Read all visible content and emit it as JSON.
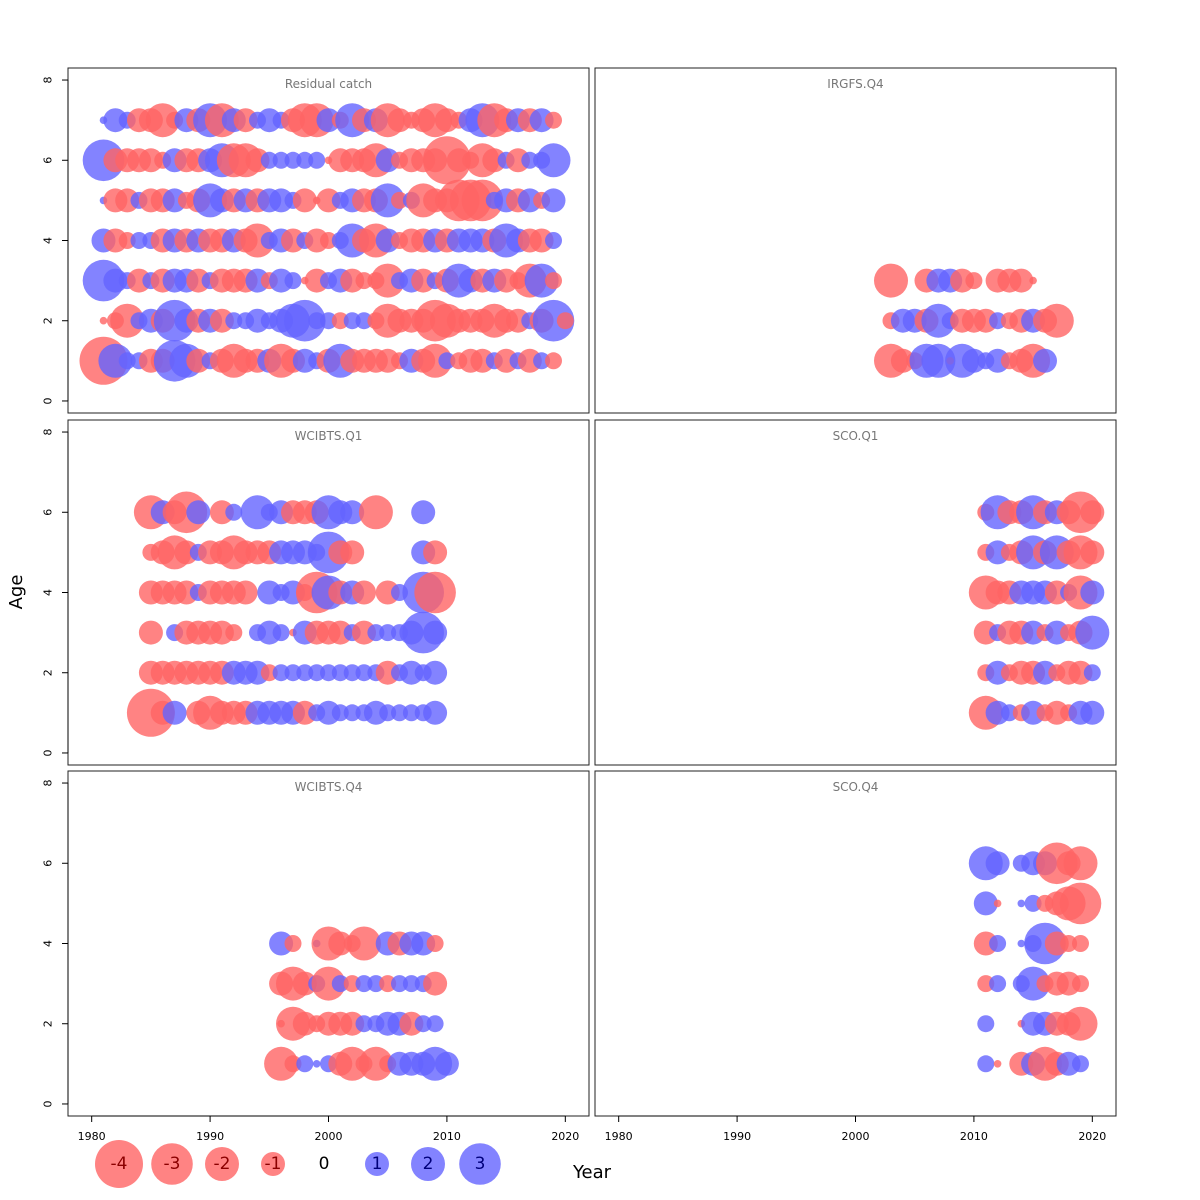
{
  "chart_data": {
    "type": "scatter",
    "subtype": "bubble-residuals",
    "xlabel": "Year",
    "ylabel": "Age",
    "xlim": [
      1978,
      2022
    ],
    "ylim": [
      -0.3,
      8.3
    ],
    "x_ticks": [
      1980,
      1990,
      2000,
      2010,
      2020
    ],
    "y_ticks": [
      0,
      2,
      4,
      6,
      8
    ],
    "colors": {
      "positive": "#6464ff",
      "negative": "#ff6464"
    },
    "legend": {
      "placement": "bottom-left",
      "entries": [
        {
          "label": "-4",
          "value": -4
        },
        {
          "label": "-3",
          "value": -3
        },
        {
          "label": "-2",
          "value": -2
        },
        {
          "label": "-1",
          "value": -1
        },
        {
          "label": "0",
          "value": 0
        },
        {
          "label": "1",
          "value": 1
        },
        {
          "label": "2",
          "value": 2
        },
        {
          "label": "3",
          "value": 3
        }
      ]
    },
    "panels": [
      {
        "title": "Residual catch",
        "x_start": 1981,
        "rows": [
          {
            "age": 1,
            "residuals": [
              -4,
              2,
              0.5,
              0.5,
              -1,
              -1,
              3,
              2,
              -1,
              0.5,
              -1,
              -2,
              -1,
              -1,
              1,
              -2,
              -1,
              1,
              0.5,
              -1,
              2,
              -1,
              -1,
              -1,
              -1,
              -0.5,
              1,
              -1,
              -2,
              0.5,
              -0.5,
              -1,
              -1,
              0.5,
              -1,
              0.5,
              -1,
              0.5,
              -0.5
            ]
          },
          {
            "age": 2,
            "residuals": [
              -0.1,
              -0.5,
              -2,
              0.5,
              1,
              -1,
              3,
              1,
              -1,
              1,
              -1,
              0.5,
              0.5,
              1,
              0.5,
              1,
              2,
              3,
              0.5,
              0.5,
              -0.5,
              0.5,
              0.5,
              -0.5,
              -2,
              -1,
              -1,
              -1,
              -3,
              -2,
              -1,
              -1,
              -1,
              -2,
              -1,
              -1,
              0.5,
              -1,
              3,
              -0.5
            ]
          },
          {
            "age": 3,
            "residuals": [
              3,
              1,
              0.5,
              -1,
              0.5,
              -1,
              1,
              1,
              -1,
              0.5,
              -1,
              -1,
              -1,
              1,
              -0.5,
              1,
              0.5,
              -0.1,
              -1,
              0.5,
              1,
              -1,
              -0.5,
              -0.5,
              -2,
              0.5,
              1,
              -1,
              0.5,
              -1,
              2,
              1,
              -1,
              1,
              -1,
              -0.5,
              -2,
              2,
              -0.5
            ]
          },
          {
            "age": 4,
            "residuals": [
              1,
              -1,
              -0.5,
              0.5,
              0.5,
              -1,
              1,
              -1,
              1,
              -1,
              -1,
              1,
              -1,
              -2,
              0.5,
              1,
              -1,
              0.5,
              -1,
              -0.5,
              0.5,
              2,
              -1,
              -2,
              1,
              -0.5,
              -1,
              -1,
              1,
              -1,
              1,
              1,
              1,
              -1,
              2,
              1,
              -1,
              -1,
              0.5
            ]
          },
          {
            "age": 5,
            "residuals": [
              0.1,
              -1,
              -1,
              0.5,
              -1,
              -1,
              1,
              -0.5,
              -1,
              2,
              1,
              -1,
              1,
              -1,
              1,
              1,
              0.5,
              -1,
              -0.1,
              -1,
              0.5,
              1,
              -1,
              -1,
              2,
              -0.5,
              0.5,
              -2,
              -1,
              -1,
              -3,
              -3,
              -3,
              0.5,
              1,
              -1,
              1,
              -0.5,
              1
            ]
          },
          {
            "age": 6,
            "residuals": [
              3,
              -1,
              -1,
              -1,
              -1,
              -0.5,
              1,
              -1,
              -1,
              1,
              2,
              -2,
              -2,
              -1,
              0.5,
              0.5,
              0.5,
              0.5,
              0.5,
              -0.1,
              -1,
              -1,
              -1,
              -2,
              1,
              -0.5,
              -1,
              -1,
              -1,
              -4,
              -1,
              -0.5,
              -2,
              -1,
              0.5,
              -1,
              0.5,
              0.5,
              2
            ]
          },
          {
            "age": 7,
            "residuals": [
              0.1,
              1,
              0.5,
              -1,
              -1,
              -2,
              -0.5,
              1,
              -1,
              2,
              -2,
              1,
              -1,
              0.5,
              1,
              0.5,
              -1,
              -2,
              -2,
              1,
              -0.5,
              2,
              -1,
              1,
              -2,
              -1,
              -0.5,
              -1,
              -2,
              -1,
              -0.5,
              1,
              2,
              -2,
              -1,
              1,
              -1,
              1,
              -0.5
            ]
          }
        ]
      },
      {
        "title": "IRGFS.Q4",
        "x_start": 2003,
        "rows": [
          {
            "age": 1,
            "residuals": [
              -2,
              -1,
              -0.5,
              2,
              2,
              -0.1,
              2,
              1,
              0.5,
              1,
              -0.5,
              -1,
              -2,
              1
            ]
          },
          {
            "age": 2,
            "residuals": [
              -0.5,
              1,
              1,
              -1,
              2,
              0.5,
              -1,
              -1,
              -1,
              0.5,
              -0.5,
              -1,
              1,
              -1,
              -2
            ]
          },
          {
            "age": 3,
            "residuals": [
              -2,
              0,
              0,
              -1,
              1,
              1,
              -1,
              -0.5,
              0,
              -1,
              -1,
              -1,
              -0.1
            ]
          }
        ]
      },
      {
        "title": "WCIBTS.Q1",
        "x_start": 1985,
        "rows": [
          {
            "age": 1,
            "residuals": [
              -4,
              -1,
              1,
              0,
              -1,
              -2,
              -1,
              -1,
              -1,
              1,
              1,
              1,
              1,
              -1,
              0.5,
              1,
              0.5,
              0.5,
              0.5,
              1,
              0.5,
              0.5,
              0.5,
              0.5,
              1
            ]
          },
          {
            "age": 2,
            "residuals": [
              -1,
              -1,
              -1,
              -1,
              -1,
              -1,
              -1,
              1,
              1,
              1,
              -0.5,
              0.5,
              0.5,
              0.5,
              0.5,
              0.5,
              0.5,
              0.5,
              0.5,
              0.5,
              -1,
              0.5,
              1,
              0.5,
              1
            ]
          },
          {
            "age": 3,
            "residuals": [
              -1,
              0,
              0.5,
              -1,
              -1,
              -1,
              -1,
              -0.5,
              0,
              0.5,
              1,
              0.5,
              -0.1,
              1,
              -1,
              -1,
              -1,
              0.5,
              -1,
              0.5,
              0.5,
              0.5,
              1,
              3,
              1
            ]
          },
          {
            "age": 4,
            "residuals": [
              -1,
              -1,
              -1,
              -1,
              0.5,
              -1,
              -1,
              -1,
              -1,
              0,
              1,
              0.5,
              1,
              -0.5,
              -3,
              2,
              -1,
              1,
              -1,
              0,
              -1,
              0.5,
              0,
              3,
              -3
            ]
          },
          {
            "age": 5,
            "residuals": [
              -0.5,
              -1,
              -2,
              -1,
              0.5,
              -1,
              -1,
              -2,
              -1,
              -1,
              -1,
              1,
              1,
              1,
              0.5,
              3,
              -1,
              -1,
              0,
              0,
              0,
              0,
              0,
              1,
              -1
            ]
          },
          {
            "age": 6,
            "residuals": [
              -2,
              1,
              -1,
              -3,
              1,
              0,
              -1,
              0.5,
              0,
              2,
              0.5,
              1,
              -1,
              -1,
              -1,
              2,
              1,
              1,
              0,
              -2,
              0,
              0,
              0,
              1
            ]
          }
        ]
      },
      {
        "title": "SCO.Q1",
        "x_start": 2011,
        "rows": [
          {
            "age": 1,
            "residuals": [
              -2,
              1,
              0.5,
              -0.5,
              1,
              -0.5,
              -1,
              -0.5,
              1,
              1
            ]
          },
          {
            "age": 2,
            "residuals": [
              -0.5,
              1,
              -0.5,
              -1,
              -1,
              1,
              -0.5,
              -1,
              -1,
              0.5
            ]
          },
          {
            "age": 3,
            "residuals": [
              -1,
              0.5,
              -1,
              -1,
              1,
              -0.5,
              1,
              -0.5,
              -1,
              2
            ]
          },
          {
            "age": 4,
            "residuals": [
              -2,
              -1,
              -1,
              1,
              1,
              1,
              -1,
              0.5,
              -2,
              1
            ]
          },
          {
            "age": 5,
            "residuals": [
              -0.5,
              1,
              -0.5,
              -1,
              2,
              -1,
              2,
              -1,
              -2,
              -1
            ]
          },
          {
            "age": 6,
            "residuals": [
              -0.5,
              2,
              -1,
              -1,
              2,
              -1,
              1,
              -1,
              -3,
              -1
            ]
          }
        ]
      },
      {
        "title": "WCIBTS.Q4",
        "x_start": 1996,
        "rows": [
          {
            "age": 1,
            "residuals": [
              -2,
              -0.5,
              0.5,
              0.1,
              0.5,
              -1,
              -2,
              -0.5,
              -2,
              -0.5,
              1,
              1,
              1,
              2,
              1
            ]
          },
          {
            "age": 2,
            "residuals": [
              -0.1,
              -2,
              -1,
              -0.5,
              -1,
              -1,
              -1,
              0.5,
              0.5,
              1,
              1,
              -1,
              0.5,
              0.5
            ]
          },
          {
            "age": 3,
            "residuals": [
              -1,
              -2,
              -1,
              0.5,
              -2,
              0.5,
              -0.5,
              0.5,
              0.5,
              -0.5,
              0.5,
              0.5,
              0.5,
              -1
            ]
          },
          {
            "age": 4,
            "residuals": [
              1,
              -0.5,
              0,
              0.1,
              -2,
              -1,
              -0.5,
              -2,
              0,
              1,
              -1,
              1,
              1,
              -0.5
            ]
          }
        ]
      },
      {
        "title": "SCO.Q4",
        "x_start": 2011,
        "rows": [
          {
            "age": 1,
            "residuals": [
              0.5,
              -0.1,
              0,
              -1,
              1,
              -2,
              -1,
              1,
              0.5
            ]
          },
          {
            "age": 2,
            "residuals": [
              0.5,
              0,
              0,
              -0.1,
              1,
              1,
              -1,
              -1,
              -2
            ]
          },
          {
            "age": 3,
            "residuals": [
              -0.5,
              0.5,
              0,
              0.5,
              2,
              -0.5,
              -1,
              -1,
              -0.5
            ]
          },
          {
            "age": 4,
            "residuals": [
              -1,
              0.5,
              0,
              0.1,
              0.5,
              3,
              -1,
              -0.5,
              -0.5
            ]
          },
          {
            "age": 5,
            "residuals": [
              1,
              -0.1,
              0,
              0.1,
              0.5,
              -0.5,
              -1,
              -2,
              -3
            ]
          },
          {
            "age": 6,
            "residuals": [
              2,
              1,
              0,
              0.5,
              1,
              1,
              -3,
              -1,
              -2
            ]
          }
        ]
      }
    ]
  }
}
